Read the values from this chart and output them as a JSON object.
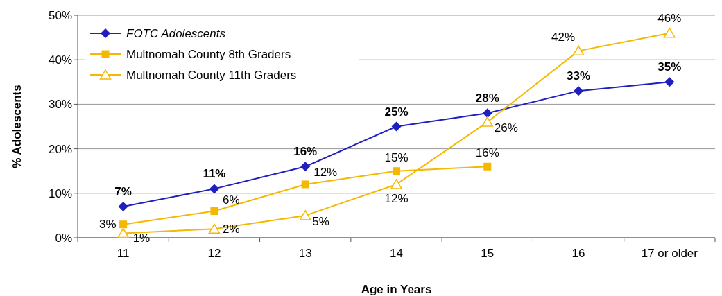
{
  "chart_data": {
    "type": "line",
    "xlabel": "Age in Years",
    "ylabel": "% Adolescents",
    "categories": [
      "11",
      "12",
      "13",
      "14",
      "15",
      "16",
      "17 or older"
    ],
    "series": [
      {
        "name": "FOTC Adolescents",
        "color": "#1f1fbf",
        "marker": "diamond",
        "values": [
          7,
          11,
          16,
          25,
          28,
          33,
          35
        ],
        "value_labels": [
          "7%",
          "11%",
          "16%",
          "25%",
          "28%",
          "33%",
          "35%"
        ]
      },
      {
        "name": "Multnomah County 8th Graders",
        "color": "#f5b800",
        "marker": "square",
        "values": [
          3,
          6,
          12,
          15,
          16,
          null,
          null
        ],
        "value_labels": [
          "3%",
          "6%",
          "12%",
          "15%",
          "16%",
          null,
          null
        ]
      },
      {
        "name": "Multnomah County 11th Graders",
        "color": "#f5b800",
        "marker": "triangle",
        "values": [
          1,
          2,
          5,
          12,
          26,
          42,
          46
        ],
        "value_labels": [
          "1%",
          "2%",
          "5%",
          "12%",
          "26%",
          "42%",
          "46%"
        ]
      }
    ],
    "ylim": [
      0,
      50
    ],
    "yticks": [
      {
        "value": 0,
        "label": "0%"
      },
      {
        "value": 10,
        "label": "10%"
      },
      {
        "value": 20,
        "label": "20%"
      },
      {
        "value": 30,
        "label": "30%"
      },
      {
        "value": 40,
        "label": "40%"
      },
      {
        "value": 50,
        "label": "50%"
      }
    ],
    "grid": "y",
    "legend": "top left"
  }
}
